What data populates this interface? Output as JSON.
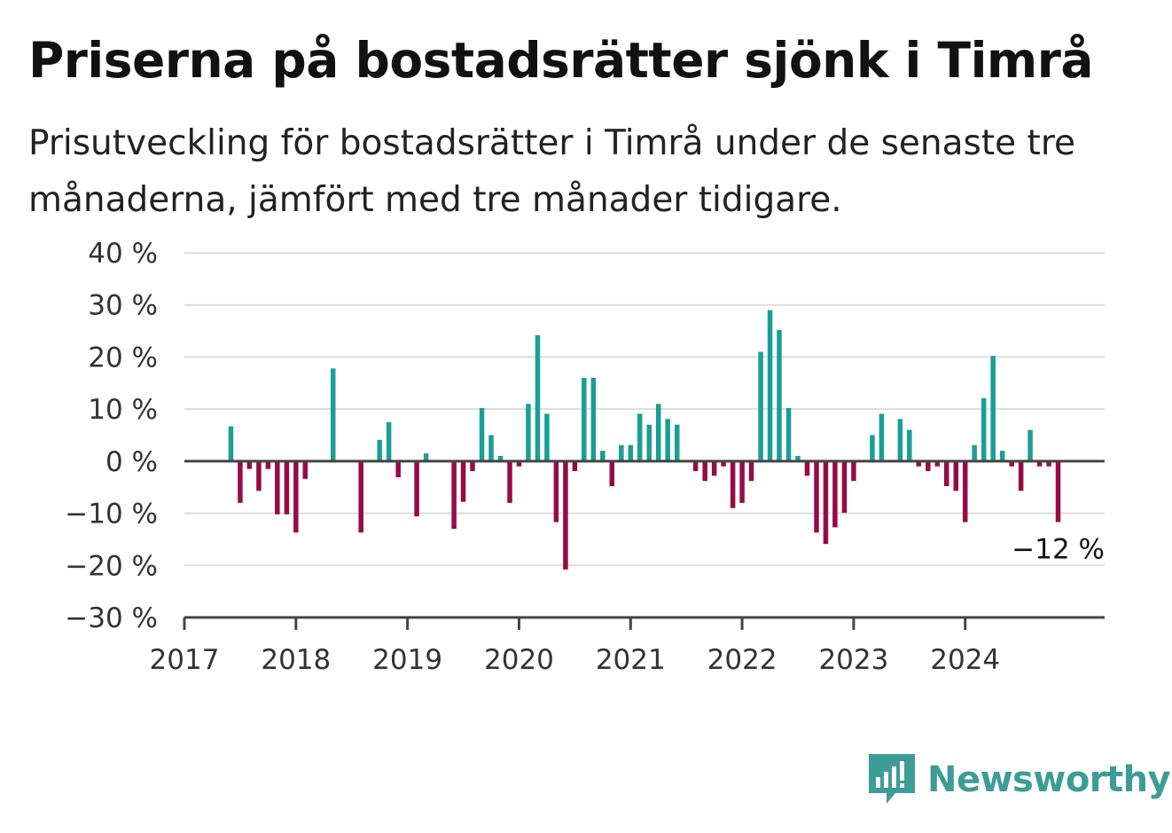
{
  "title": "Priserna på bostadsrätter sjönk i Timrå",
  "subtitle": "Prisutveckling för bostadsrätter i Timrå under de senaste tre månaderna, jämfört med tre månader tidigare.",
  "brand": {
    "name": "Newsworthy",
    "icon": "newsworthy-logo-icon",
    "color": "#3e9c97"
  },
  "chart_data": {
    "type": "bar",
    "title": "Priserna på bostadsrätter sjönk i Timrå",
    "xlabel": "",
    "ylabel": "",
    "ylim": [
      -30,
      40
    ],
    "y_ticks": [
      -30,
      -20,
      -10,
      0,
      10,
      20,
      30,
      40
    ],
    "y_tick_labels": [
      "−30 %",
      "−20 %",
      "−10 %",
      "0 %",
      "10 %",
      "20 %",
      "30 %",
      "40 %"
    ],
    "x_ticks": [
      2017,
      2018,
      2019,
      2020,
      2021,
      2022,
      2023,
      2024
    ],
    "x_tick_labels": [
      "2017",
      "2018",
      "2019",
      "2020",
      "2021",
      "2022",
      "2023",
      "2024"
    ],
    "x_range": [
      2017,
      2025.25
    ],
    "grid": true,
    "colors": {
      "positive": "#1a9e96",
      "negative": "#960b46",
      "zero_line": "#444444",
      "grid": "#dddddd"
    },
    "annotation": {
      "text": "−12 %",
      "x": 2024.833,
      "y": -12
    },
    "series": [
      {
        "x": [
          2017.417,
          2017.5,
          2017.583,
          2017.667,
          2017.75,
          2017.833,
          2017.917,
          2018.0,
          2018.083,
          2018.333,
          2018.583,
          2018.75,
          2018.833,
          2018.917,
          2019.083,
          2019.167,
          2019.417,
          2019.5,
          2019.583,
          2019.667,
          2019.75,
          2019.833,
          2019.917,
          2020.0,
          2020.083,
          2020.167,
          2020.25,
          2020.333,
          2020.417,
          2020.5,
          2020.583,
          2020.667,
          2020.75,
          2020.833,
          2020.917,
          2021.0,
          2021.083,
          2021.167,
          2021.25,
          2021.333,
          2021.417,
          2021.583,
          2021.667,
          2021.75,
          2021.833,
          2021.917,
          2022.0,
          2022.083,
          2022.167,
          2022.25,
          2022.333,
          2022.417,
          2022.5,
          2022.583,
          2022.667,
          2022.75,
          2022.833,
          2022.917,
          2023.0,
          2023.167,
          2023.25,
          2023.417,
          2023.5,
          2023.583,
          2023.667,
          2023.75,
          2023.833,
          2023.917,
          2024.0,
          2024.083,
          2024.167,
          2024.25,
          2024.333,
          2024.417,
          2024.5,
          2024.583,
          2024.667,
          2024.75,
          2024.833
        ],
        "values": [
          6.7,
          -8.0,
          -1.5,
          -5.7,
          -1.5,
          -10.2,
          -10.2,
          -13.7,
          -3.4,
          17.8,
          -13.7,
          4.1,
          7.5,
          -3.1,
          -10.6,
          1.5,
          -13.0,
          -7.8,
          -1.9,
          10.2,
          5.0,
          1.0,
          -8.0,
          -1.0,
          11.0,
          24.2,
          9.1,
          -11.7,
          -20.8,
          -1.9,
          16.0,
          16.0,
          2.0,
          -4.8,
          3.1,
          3.1,
          9.1,
          7.0,
          11.0,
          8.1,
          7.0,
          -1.9,
          -3.8,
          -2.8,
          -1.0,
          -9.0,
          -8.0,
          -3.8,
          21.0,
          29.0,
          25.2,
          10.2,
          1.0,
          -2.8,
          -13.7,
          -15.9,
          -12.7,
          -9.9,
          -3.8,
          5.0,
          9.1,
          8.1,
          6.0,
          -1.0,
          -1.9,
          -1.0,
          -4.8,
          -5.7,
          -11.7,
          3.1,
          12.1,
          20.2,
          2.0,
          -1.0,
          -5.7,
          6.0,
          -1.0,
          -1.0,
          -11.7
        ]
      }
    ]
  }
}
